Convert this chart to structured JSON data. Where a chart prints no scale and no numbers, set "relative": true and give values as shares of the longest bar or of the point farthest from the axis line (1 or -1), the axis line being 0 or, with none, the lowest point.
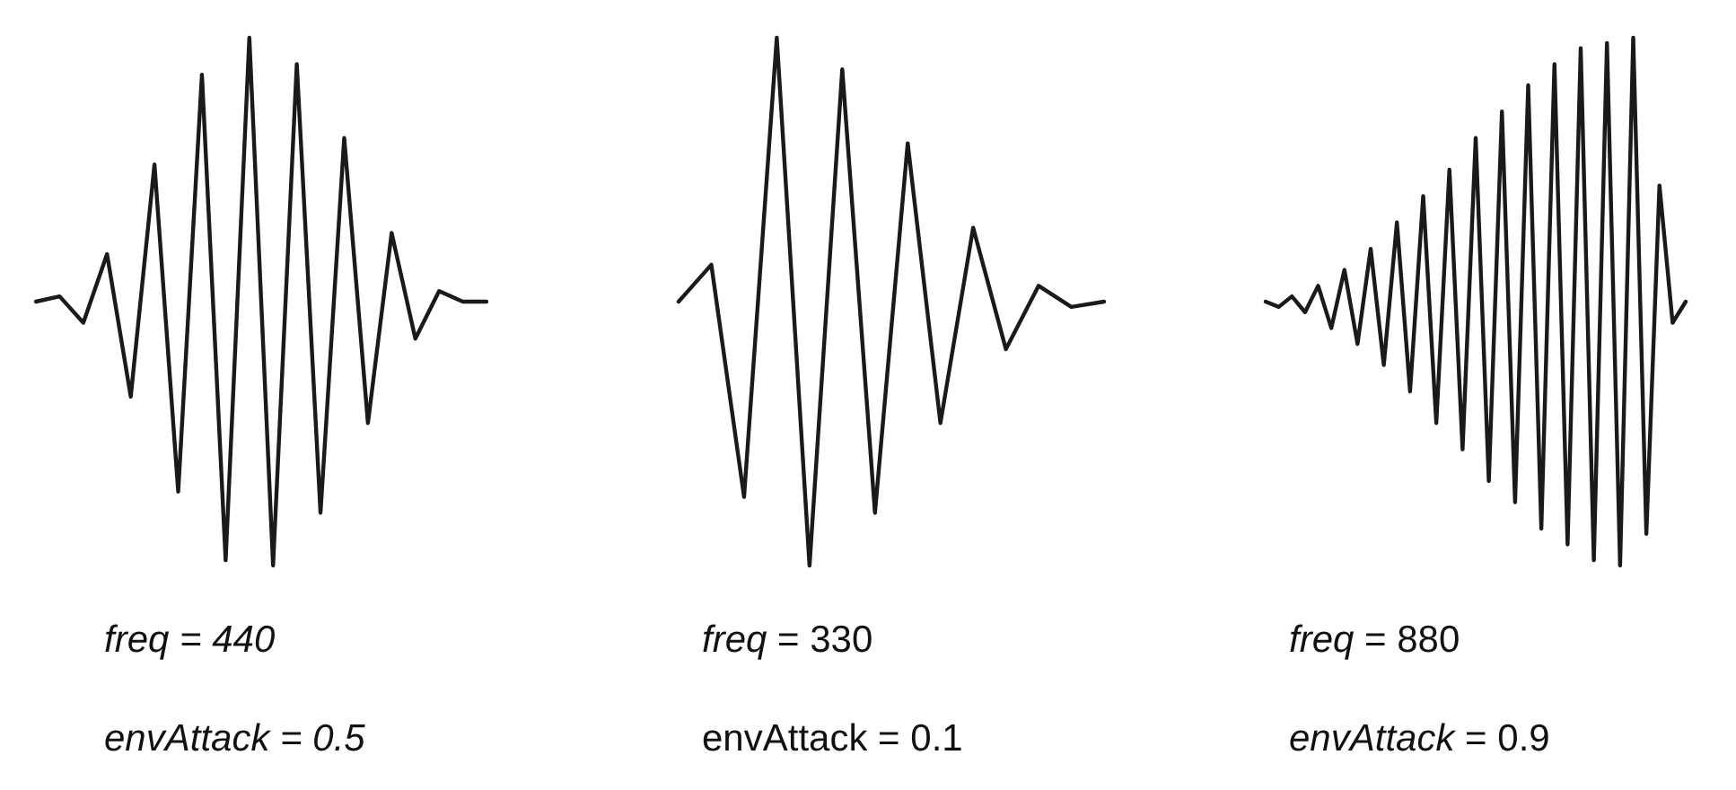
{
  "chart_data": [
    {
      "type": "line",
      "relative": true,
      "annotations": [
        "freq = 440",
        "envAttack = 0.5"
      ],
      "categories": [
        null,
        null,
        null,
        null,
        null,
        null,
        null,
        null,
        null,
        null,
        null,
        null,
        null,
        null,
        null,
        null,
        null,
        null,
        null,
        null
      ],
      "series": [
        {
          "color": "#1a1a1a",
          "values": [
            0.5,
            0.51,
            0.46,
            0.59,
            0.32,
            0.76,
            0.14,
            0.93,
            0.01,
            1,
            0,
            0.95,
            0.1,
            0.81,
            0.27,
            0.63,
            0.43,
            0.52,
            0.5,
            0.5
          ]
        }
      ]
    },
    {
      "type": "line",
      "relative": true,
      "annotations": [
        "freq = 330",
        "envAttack = 0.1"
      ],
      "categories": [
        null,
        null,
        null,
        null,
        null,
        null,
        null,
        null,
        null,
        null,
        null,
        null,
        null,
        null
      ],
      "series": [
        {
          "color": "#1a1a1a",
          "values": [
            0.5,
            0.57,
            0.13,
            1,
            0,
            0.94,
            0.1,
            0.8,
            0.27,
            0.64,
            0.41,
            0.53,
            0.49,
            0.5
          ]
        }
      ]
    },
    {
      "type": "line",
      "relative": true,
      "annotations": [
        "freq = 880",
        "envAttack = 0.9"
      ],
      "categories": [
        null,
        null,
        null,
        null,
        null,
        null,
        null,
        null,
        null,
        null,
        null,
        null,
        null,
        null,
        null,
        null,
        null,
        null,
        null,
        null,
        null,
        null,
        null,
        null,
        null,
        null,
        null,
        null,
        null,
        null,
        null,
        null,
        null
      ],
      "series": [
        {
          "color": "#1a1a1a",
          "values": [
            0.5,
            0.49,
            0.51,
            0.48,
            0.53,
            0.45,
            0.56,
            0.42,
            0.6,
            0.38,
            0.65,
            0.33,
            0.7,
            0.27,
            0.75,
            0.22,
            0.81,
            0.16,
            0.86,
            0.12,
            0.91,
            0.07,
            0.95,
            0.04,
            0.98,
            0.01,
            0.99,
            0,
            1,
            0.06,
            0.72,
            0.46,
            0.5
          ]
        }
      ]
    }
  ]
}
